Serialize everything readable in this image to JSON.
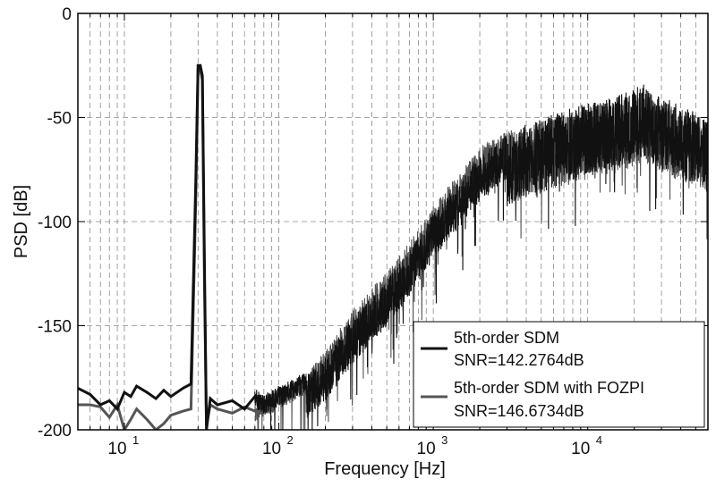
{
  "chart_data": {
    "type": "line",
    "title": "",
    "xlabel": "Frequency [Hz]",
    "ylabel": "PSD [dB]",
    "xscale": "log",
    "xlim": [
      5,
      60000
    ],
    "ylim": [
      -200,
      0
    ],
    "grid": "dashed",
    "x_tick_labels": [
      {
        "base": "10",
        "exp": "1",
        "value": 10
      },
      {
        "base": "10",
        "exp": "2",
        "value": 100
      },
      {
        "base": "10",
        "exp": "3",
        "value": 1000
      },
      {
        "base": "10",
        "exp": "4",
        "value": 10000
      }
    ],
    "y_ticks": [
      {
        "label": "0",
        "value": 0
      },
      {
        "label": "-50",
        "value": -50
      },
      {
        "label": "-100",
        "value": -100
      },
      {
        "label": "-150",
        "value": -150
      },
      {
        "label": "-200",
        "value": -200
      }
    ],
    "legend_position": "bottom-right",
    "legend": [
      {
        "line1": "5th-order SDM",
        "line2": "SNR=142.2764dB",
        "color": "#111111"
      },
      {
        "line1": "5th-order SDM with FOZPI",
        "line2": "SNR=146.6734dB",
        "color": "#555555"
      }
    ],
    "series": [
      {
        "name": "5th-order SDM",
        "color": "#111111",
        "x": [
          5,
          6,
          7,
          8,
          9,
          10,
          11,
          12,
          14,
          16,
          18,
          20,
          24,
          27,
          29,
          30,
          31,
          32,
          33,
          34,
          36,
          40,
          50,
          60,
          70,
          80,
          100,
          150,
          200,
          300,
          500,
          700,
          1000,
          1500,
          2000,
          3000,
          4000,
          5000,
          7000,
          10000,
          15000,
          20000,
          23000,
          30000,
          40000,
          60000
        ],
        "y": [
          -180,
          -183,
          -188,
          -186,
          -190,
          -182,
          -184,
          -179,
          -182,
          -185,
          -181,
          -184,
          -180,
          -178,
          -80,
          -25,
          -25,
          -30,
          -120,
          -200,
          -185,
          -188,
          -186,
          -190,
          -184,
          -187,
          -183,
          -176,
          -168,
          -150,
          -132,
          -118,
          -100,
          -84,
          -72,
          -62,
          -55,
          -55,
          -50,
          -47,
          -44,
          -40,
          -38,
          -44,
          -48,
          -52
        ]
      },
      {
        "name": "5th-order SDM with FOZPI",
        "color": "#555555",
        "x": [
          5,
          6,
          7,
          8,
          9,
          10,
          11,
          12,
          14,
          16,
          18,
          20,
          24,
          27,
          29,
          30,
          31,
          32,
          33,
          34,
          36,
          40,
          50,
          60,
          70,
          80,
          100,
          150,
          200,
          300,
          500,
          700,
          1000,
          1500,
          2000,
          3000,
          4000,
          5000,
          7000,
          10000,
          15000,
          20000,
          23000,
          30000,
          40000,
          60000
        ],
        "y": [
          -188,
          -188,
          -189,
          -194,
          -188,
          -200,
          -195,
          -190,
          -195,
          -200,
          -197,
          -193,
          -191,
          -190,
          -90,
          -27,
          -27,
          -32,
          -130,
          -198,
          -188,
          -190,
          -192,
          -189,
          -191,
          -188,
          -185,
          -177,
          -166,
          -146,
          -128,
          -114,
          -96,
          -80,
          -68,
          -60,
          -58,
          -56,
          -52,
          -49,
          -46,
          -42,
          -40,
          -46,
          -50,
          -54
        ]
      }
    ]
  }
}
